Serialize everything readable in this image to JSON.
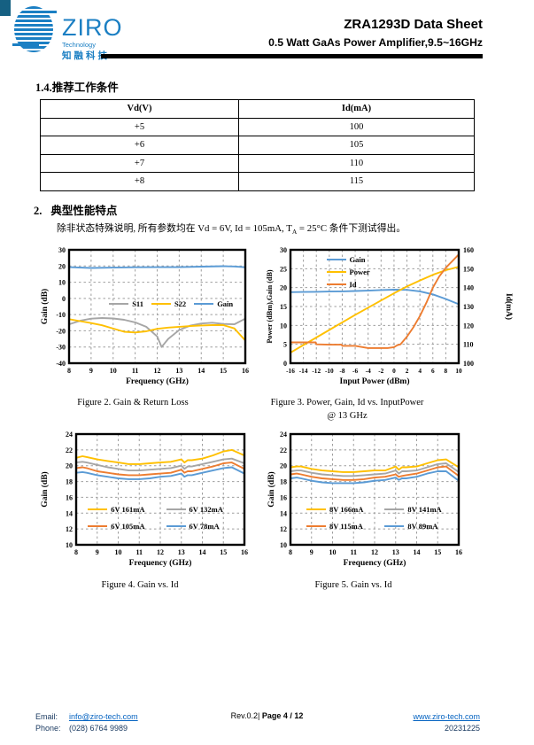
{
  "header": {
    "logo_text": "ZIRO",
    "logo_sub": "Technology",
    "logo_cn": "知融科技",
    "title": "ZRA1293D Data Sheet",
    "subtitle": "0.5 Watt GaAs Power Amplifier,9.5~16GHz"
  },
  "section1": {
    "heading": "1.4.推荐工作条件",
    "table": {
      "headers": [
        "Vd(V)",
        "Id(mA)"
      ],
      "rows": [
        [
          "+5",
          "100"
        ],
        [
          "+6",
          "105"
        ],
        [
          "+7",
          "110"
        ],
        [
          "+8",
          "115"
        ]
      ]
    }
  },
  "section2": {
    "heading_num": "2.",
    "heading": "典型性能特点",
    "note_prefix": "除非状态特殊说明, 所有参数均在 Vd = 6V,  Id = 105mA, T",
    "note_sub": "A",
    "note_suffix": " = 25°C 条件下测试得出。"
  },
  "figures": {
    "fig2_caption": "Figure 2. Gain & Return Loss",
    "fig3_caption": "Figure 3. Power, Gain, Id vs. InputPower",
    "fig3_caption2": "@ 13 GHz",
    "fig4_caption": "Figure 4. Gain vs. Id",
    "fig5_caption": "Figure 5. Gain vs. Id"
  },
  "footer": {
    "email_label": "Email:",
    "email": "info@ziro-tech.com",
    "phone_label": "Phone:",
    "phone": "(028) 6764 9989",
    "rev": "Rev.0.2| ",
    "page": "Page 4 / 12",
    "website": "www.ziro-tech.com",
    "date": "20231225"
  },
  "colors": {
    "logo_blue": "#1b7fc3",
    "corner_teal": "#156082",
    "link_blue": "#0563c1",
    "series_gray": "#A6A6A6",
    "series_yellow": "#FFC000",
    "series_blue": "#5B9BD5",
    "series_orange": "#ED7D31"
  },
  "chart_data": [
    {
      "id": "fig2",
      "type": "line",
      "xlabel": "Frequency (GHz)",
      "ylabel": "Gain (dB)",
      "xlim": [
        8,
        16
      ],
      "xstep": 1,
      "ylim": [
        -40,
        30
      ],
      "ystep": 10,
      "grid": true,
      "legend": "inline-middle",
      "series": [
        {
          "name": "S11",
          "color": "#A6A6A6",
          "x": [
            8,
            8.5,
            9,
            9.5,
            10,
            10.5,
            11,
            11.5,
            12,
            12.2,
            12.5,
            13,
            13.5,
            14,
            14.5,
            15,
            15.5,
            16
          ],
          "y": [
            -16,
            -13.8,
            -12.5,
            -12.1,
            -12.4,
            -13.2,
            -14.8,
            -17.5,
            -23.5,
            -30,
            -25,
            -19.5,
            -16.8,
            -15.5,
            -15,
            -15.8,
            -16,
            -12.5
          ]
        },
        {
          "name": "S22",
          "color": "#FFC000",
          "x": [
            8,
            8.5,
            9,
            9.5,
            10,
            10.5,
            11,
            11.5,
            12,
            12.5,
            13,
            13.5,
            14,
            14.5,
            15,
            15.5,
            16
          ],
          "y": [
            -12.8,
            -14,
            -15.2,
            -16.6,
            -18.6,
            -20.6,
            -21,
            -20.3,
            -18.8,
            -18,
            -17.5,
            -17.1,
            -16.7,
            -16.5,
            -16.5,
            -18.5,
            -26
          ]
        },
        {
          "name": "Gain",
          "color": "#5B9BD5",
          "x": [
            8,
            9,
            10,
            11,
            12,
            13,
            14,
            15,
            15.5,
            16
          ],
          "y": [
            19.3,
            18.8,
            19,
            19.2,
            19.3,
            19.3,
            19.6,
            19.9,
            19.7,
            19.2
          ]
        }
      ]
    },
    {
      "id": "fig3",
      "type": "line",
      "xlabel": "Input Power (dBm)",
      "ylabel": "Power (dBm),Gain (dB)",
      "y2label": "Id(mA)",
      "xlim": [
        -16,
        10
      ],
      "xstep": 2,
      "ylim": [
        0,
        30
      ],
      "ystep": 5,
      "y2lim": [
        100,
        160
      ],
      "y2step": 10,
      "grid": true,
      "legend": "top-left",
      "series": [
        {
          "name": "Gain",
          "color": "#5B9BD5",
          "x": [
            -16,
            -14,
            -12,
            -10,
            -8,
            -6,
            -4,
            -2,
            0,
            2,
            4,
            6,
            8,
            10
          ],
          "y": [
            18.8,
            18.85,
            18.9,
            18.95,
            19,
            19.1,
            19.2,
            19.35,
            19.45,
            19.4,
            19,
            18.2,
            17,
            15.6
          ]
        },
        {
          "name": "Power",
          "color": "#FFC000",
          "x": [
            -16,
            -14,
            -12,
            -10,
            -8,
            -6,
            -4,
            -2,
            0,
            2,
            4,
            6,
            8,
            10
          ],
          "y": [
            2.8,
            4.8,
            6.8,
            8.8,
            10.8,
            12.8,
            14.7,
            16.6,
            18.5,
            20.3,
            21.9,
            23.4,
            24.6,
            25.5
          ]
        },
        {
          "name": "Id",
          "color": "#ED7D31",
          "axis": "y2",
          "x": [
            -16,
            -14,
            -12.1,
            -12,
            -10,
            -8.1,
            -8,
            -6,
            -4,
            -2,
            -1,
            0,
            0.5,
            1,
            2,
            3,
            4,
            5,
            6,
            7,
            8,
            9,
            10
          ],
          "y": [
            111,
            111,
            111,
            110,
            109.8,
            109.8,
            109.2,
            109.2,
            108,
            108,
            108,
            108.5,
            109.5,
            110,
            114,
            119,
            125,
            132,
            140,
            146,
            150.5,
            154,
            157.5
          ]
        }
      ]
    },
    {
      "id": "fig4",
      "type": "line",
      "xlabel": "Frequency (GHz)",
      "ylabel": "Gain (dB)",
      "xlim": [
        8,
        16
      ],
      "xstep": 1,
      "ylim": [
        10,
        24
      ],
      "ystep": 2,
      "grid": true,
      "legend": "bottom-grid",
      "series": [
        {
          "name": "6V 161mA",
          "color": "#FFC000",
          "x": [
            8,
            8.3,
            8.5,
            9,
            9.5,
            10,
            10.5,
            11,
            11.5,
            12,
            12.5,
            13,
            13.15,
            13.3,
            13.5,
            14,
            14.5,
            15,
            15.4,
            16
          ],
          "y": [
            21,
            21.2,
            21.1,
            20.8,
            20.6,
            20.4,
            20.2,
            20.2,
            20.3,
            20.4,
            20.5,
            20.8,
            20.4,
            20.7,
            20.7,
            20.9,
            21.3,
            21.8,
            22,
            21.3
          ]
        },
        {
          "name": "6V 132mA",
          "color": "#A6A6A6",
          "x": [
            8,
            8.3,
            8.5,
            9,
            9.5,
            10,
            10.5,
            11,
            11.5,
            12,
            12.5,
            13,
            13.15,
            13.3,
            13.5,
            14,
            14.5,
            15,
            15.4,
            16
          ],
          "y": [
            20.4,
            20.5,
            20.4,
            20.1,
            19.8,
            19.6,
            19.4,
            19.4,
            19.5,
            19.6,
            19.7,
            20,
            19.6,
            19.9,
            19.9,
            20.2,
            20.5,
            20.8,
            20.9,
            20.3
          ]
        },
        {
          "name": "6V 105mA",
          "color": "#ED7D31",
          "x": [
            8,
            8.3,
            8.5,
            9,
            9.5,
            10,
            10.5,
            11,
            11.5,
            12,
            12.5,
            13,
            13.15,
            13.3,
            13.5,
            14,
            14.5,
            15,
            15.4,
            16
          ],
          "y": [
            19.7,
            19.8,
            19.7,
            19.3,
            19.1,
            18.9,
            18.8,
            18.8,
            18.9,
            19,
            19.1,
            19.5,
            19.1,
            19.3,
            19.3,
            19.6,
            19.9,
            20.3,
            20.4,
            19.6
          ]
        },
        {
          "name": "6V 78mA",
          "color": "#5B9BD5",
          "x": [
            8,
            8.3,
            8.5,
            9,
            9.5,
            10,
            10.5,
            11,
            11.5,
            12,
            12.5,
            13,
            13.15,
            13.3,
            13.5,
            14,
            14.5,
            15,
            15.4,
            16
          ],
          "y": [
            19.1,
            19.2,
            19.1,
            18.8,
            18.6,
            18.4,
            18.3,
            18.3,
            18.4,
            18.6,
            18.7,
            19,
            18.6,
            18.8,
            18.8,
            19.1,
            19.4,
            19.7,
            19.8,
            19
          ]
        }
      ]
    },
    {
      "id": "fig5",
      "type": "line",
      "xlabel": "Frequency (GHz)",
      "ylabel": "Gain (dB)",
      "xlim": [
        8,
        16
      ],
      "xstep": 1,
      "ylim": [
        10,
        24
      ],
      "ystep": 2,
      "grid": true,
      "legend": "bottom-grid",
      "series": [
        {
          "name": "8V 166mA",
          "color": "#FFC000",
          "x": [
            8,
            8.3,
            8.5,
            9,
            9.5,
            10,
            10.5,
            11,
            11.5,
            12,
            12.5,
            13,
            13.15,
            13.3,
            13.5,
            14,
            14.5,
            15,
            15.4,
            16
          ],
          "y": [
            19.8,
            19.9,
            19.9,
            19.6,
            19.4,
            19.3,
            19.2,
            19.2,
            19.3,
            19.4,
            19.4,
            19.9,
            19.5,
            19.8,
            19.8,
            19.9,
            20.3,
            20.7,
            20.8,
            19.8
          ]
        },
        {
          "name": "8V 141mA",
          "color": "#A6A6A6",
          "x": [
            8,
            8.3,
            8.5,
            9,
            9.5,
            10,
            10.5,
            11,
            11.5,
            12,
            12.5,
            13,
            13.15,
            13.3,
            13.5,
            14,
            14.5,
            15,
            15.4,
            16
          ],
          "y": [
            19.3,
            19.4,
            19.4,
            19.1,
            18.9,
            18.8,
            18.7,
            18.7,
            18.8,
            18.9,
            19,
            19.4,
            19,
            19.3,
            19.3,
            19.4,
            19.8,
            20.2,
            20.3,
            19.2
          ]
        },
        {
          "name": "8V 115mA",
          "color": "#ED7D31",
          "x": [
            8,
            8.3,
            8.5,
            9,
            9.5,
            10,
            10.5,
            11,
            11.5,
            12,
            12.5,
            13,
            13.15,
            13.3,
            13.5,
            14,
            14.5,
            15,
            15.4,
            16
          ],
          "y": [
            18.9,
            19,
            18.9,
            18.6,
            18.4,
            18.3,
            18.2,
            18.2,
            18.3,
            18.5,
            18.6,
            18.9,
            18.6,
            18.7,
            18.8,
            19,
            19.4,
            19.8,
            19.9,
            18.7
          ]
        },
        {
          "name": "8V 89mA",
          "color": "#5B9BD5",
          "x": [
            8,
            8.3,
            8.5,
            9,
            9.5,
            10,
            10.5,
            11,
            11.5,
            12,
            12.5,
            13,
            13.15,
            13.3,
            13.5,
            14,
            14.5,
            15,
            15.4,
            16
          ],
          "y": [
            18.4,
            18.5,
            18.4,
            18.1,
            17.9,
            17.8,
            17.8,
            17.8,
            17.9,
            18.1,
            18.2,
            18.5,
            18.2,
            18.4,
            18.4,
            18.6,
            19,
            19.3,
            19.3,
            18.1
          ]
        }
      ]
    }
  ]
}
